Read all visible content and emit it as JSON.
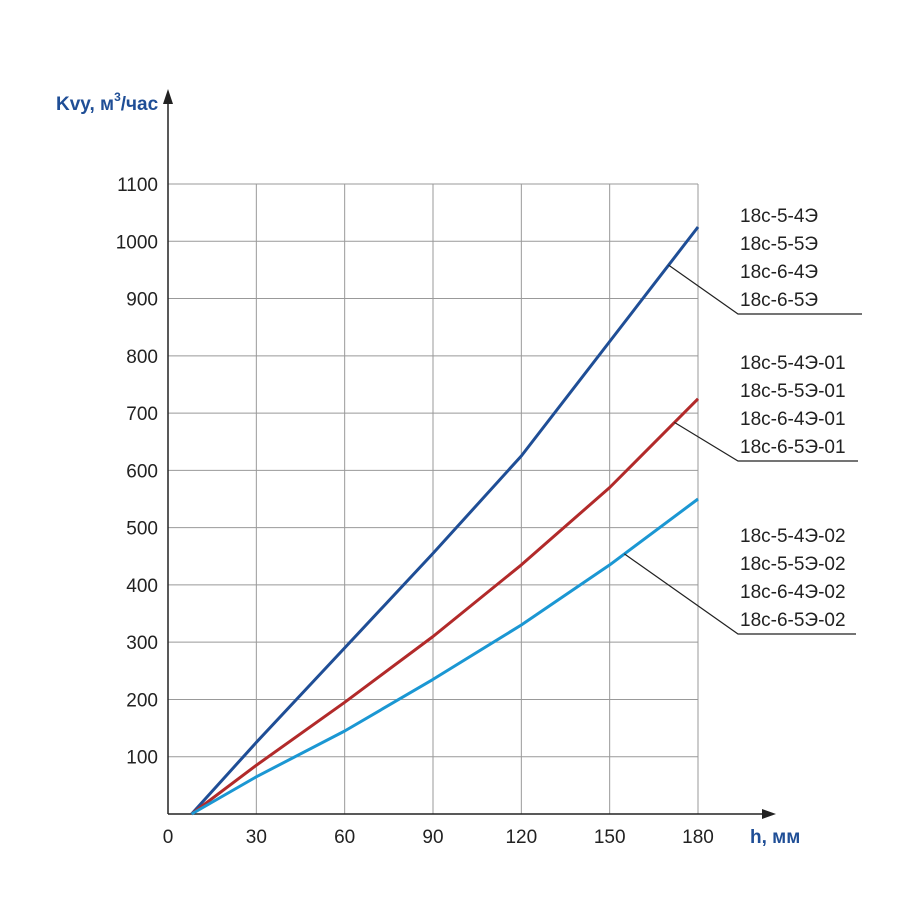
{
  "chart_data": {
    "type": "line",
    "ylabel": {
      "main": "Kvy, м",
      "sup": "3",
      "tail": "/час"
    },
    "xlabel": "h, мм",
    "xlim": [
      0,
      180
    ],
    "ylim": [
      0,
      1100
    ],
    "x_ticks": [
      "0",
      "30",
      "60",
      "90",
      "120",
      "150",
      "180"
    ],
    "y_ticks": [
      "100",
      "200",
      "300",
      "400",
      "500",
      "600",
      "700",
      "800",
      "900",
      "1000",
      "1100"
    ],
    "grid": true,
    "series": [
      {
        "color": "#1f4e96",
        "x": [
          8,
          30,
          60,
          90,
          120,
          150,
          180
        ],
        "y": [
          0,
          125,
          290,
          455,
          625,
          825,
          1025
        ],
        "legend": [
          "18с-5-4Э",
          "18с-5-5Э",
          "18с-6-4Э",
          "18с-6-5Э"
        ],
        "leader_at_x": 170
      },
      {
        "color": "#b22a2a",
        "x": [
          8,
          30,
          60,
          90,
          120,
          150,
          180
        ],
        "y": [
          0,
          85,
          195,
          310,
          435,
          570,
          725
        ],
        "legend": [
          "18с-5-4Э-01",
          "18с-5-5Э-01",
          "18с-6-4Э-01",
          "18с-6-5Э-01"
        ],
        "leader_at_x": 172
      },
      {
        "color": "#1b97d3",
        "x": [
          8,
          30,
          60,
          90,
          120,
          150,
          180
        ],
        "y": [
          0,
          65,
          145,
          235,
          330,
          435,
          550
        ],
        "legend": [
          "18с-5-4Э-02",
          "18с-5-5Э-02",
          "18с-6-4Э-02",
          "18с-6-5Э-02"
        ],
        "leader_at_x": 155
      }
    ]
  }
}
